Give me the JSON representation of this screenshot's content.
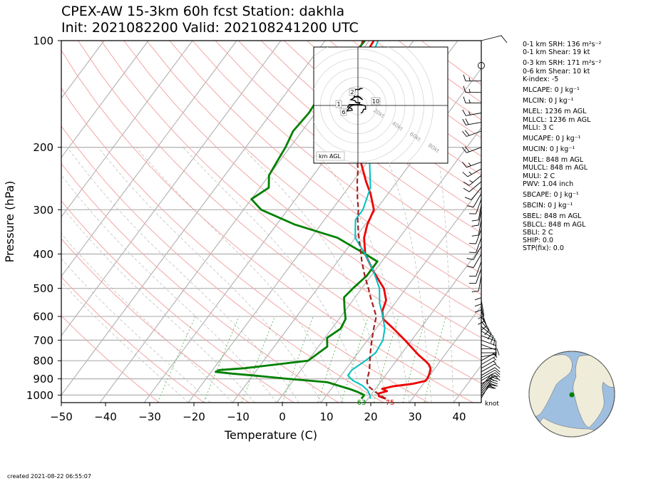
{
  "title_line1": "CPEX-AW 15-3km  60h fcst  Station: dakhla",
  "title_line2": "Init: 2021082200  Valid: 202108241200 UTC",
  "created": "created 2021-08-22 06:55:07",
  "indices": [
    "0-1 km SRH: 136 m²s⁻²",
    "0-1 km Shear: 19 kt",
    "",
    "0-3 km SRH: 171 m²s⁻²",
    "0-6 km Shear: 10 kt",
    "K-index: -5",
    "",
    "MLCAPE: 0 J kg⁻¹",
    "",
    "MLCIN: 0 J kg⁻¹",
    "",
    "MLEL: 1236 m AGL",
    "MLLCL: 1236 m AGL",
    "MLLI: 3 C",
    "",
    "MUCAPE: 0 J kg⁻¹",
    "",
    "MUCIN: 0 J kg⁻¹",
    "",
    "MUEL: 848 m AGL",
    "MULCL: 848 m AGL",
    "MULI: 2 C",
    "PWV: 1.04 inch",
    "",
    "SBCAPE: 0 J kg⁻¹",
    "",
    "SBCIN: 0 J kg⁻¹",
    "",
    "SBEL: 848 m AGL",
    "SBLCL: 848 m AGL",
    "SBLI: 2 C",
    "SHIP: 0.0",
    "STP(fix): 0.0"
  ],
  "colors": {
    "temperature": "#ee0000",
    "dewpoint": "#008000",
    "wetbulb": "#00c0c0",
    "parcel": "#a02020",
    "dry_adiabat": "#f4a6a6",
    "moist_adiabat": "#c0c0c0",
    "mixing_ratio": "#5cb85c",
    "isotherm": "#b0b0b0",
    "ocean": "#9fbfe0",
    "land": "#efecd9"
  },
  "hodograph": {
    "rings": [
      "20kt",
      "40kt",
      "60kt",
      "80kt"
    ],
    "markers": [
      "1",
      "2",
      "6",
      "10"
    ],
    "label": "km AGL",
    "path_u": [
      3,
      5,
      6,
      8,
      8,
      7,
      3,
      -4,
      -8,
      -12,
      -6,
      -7,
      -11,
      -9,
      -5,
      1,
      2,
      -2,
      -3,
      -6,
      -8,
      -6,
      -3,
      1,
      5,
      3,
      0,
      -4,
      -4,
      -3,
      -3,
      2,
      2,
      4,
      5
    ],
    "path_v": [
      -8,
      -7,
      -4,
      -4,
      -1,
      0,
      1,
      1,
      -1,
      -6,
      -5,
      -3,
      -2,
      1,
      1,
      1,
      3,
      3,
      5,
      6,
      6,
      7,
      9,
      9,
      6,
      8,
      10,
      9,
      12,
      16,
      17,
      17,
      18,
      18,
      18
    ]
  },
  "chart_data": {
    "type": "line",
    "title": "CPEX-AW 15-3km  60h fcst  Station: dakhla",
    "subtitle": "Init: 2021082200  Valid: 202108241200 UTC",
    "xlabel": "Temperature (C)",
    "ylabel": "Pressure (hPa)",
    "x_ticks": [
      -50,
      -40,
      -30,
      -20,
      -10,
      0,
      10,
      20,
      30,
      40
    ],
    "y_ticks": [
      100,
      200,
      300,
      400,
      500,
      600,
      700,
      800,
      900,
      1000
    ],
    "xlim": [
      -50,
      45
    ],
    "ylim": [
      1050,
      100
    ],
    "y_scale": "log",
    "surface_temperature_label": "75",
    "surface_dewpoint_label": "63",
    "wind_unit_label": "knot",
    "series": [
      {
        "name": "temperature",
        "pressure": [
          1024,
          1007,
          990,
          975,
          960,
          945,
          930,
          912,
          895,
          880,
          860,
          840,
          820,
          800,
          770,
          700,
          650,
          610,
          580,
          540,
          500,
          450,
          400,
          360,
          330,
          300,
          270,
          250,
          220,
          200,
          170,
          150,
          130,
          110,
          100
        ],
        "values": [
          24,
          22,
          21.5,
          23,
          21.5,
          23.5,
          27.5,
          30,
          30,
          29.8,
          29.5,
          29,
          28,
          26.5,
          24,
          18.5,
          14,
          10,
          8.5,
          7.5,
          5,
          0,
          -5,
          -8,
          -9.5,
          -10.5,
          -14,
          -17,
          -21.5,
          -25,
          -30.5,
          -35,
          -37.5,
          -38.5,
          -39
        ]
      },
      {
        "name": "dewpoint",
        "pressure": [
          1024,
          1000,
          980,
          960,
          940,
          920,
          900,
          880,
          870,
          860,
          850,
          840,
          800,
          730,
          690,
          650,
          610,
          570,
          530,
          500,
          460,
          420,
          400,
          360,
          330,
          300,
          280,
          260,
          240,
          220,
          200,
          180,
          160,
          140,
          120,
          100
        ],
        "values": [
          18.5,
          18.5,
          16.5,
          14,
          11,
          8,
          -1.5,
          -10,
          -15,
          -19,
          -18.5,
          -13,
          0,
          2,
          0.5,
          2,
          1.5,
          -0.5,
          -2.5,
          -2,
          -1,
          -1,
          -5,
          -14,
          -26,
          -36,
          -40,
          -38,
          -40,
          -40.5,
          -41,
          -42,
          -41.5,
          -42,
          -41.5,
          -41
        ]
      },
      {
        "name": "wet_bulb",
        "pressure": [
          1024,
          1000,
          970,
          940,
          910,
          880,
          850,
          800,
          760,
          700,
          650,
          600,
          550,
          500,
          450,
          400,
          360,
          320,
          300,
          260,
          220,
          200,
          170,
          140,
          120,
          100
        ],
        "values": [
          20.5,
          19.8,
          18.5,
          16.5,
          13.5,
          11.5,
          11.5,
          13,
          14,
          13.5,
          12,
          9.5,
          6.5,
          4,
          0,
          -5,
          -10,
          -13,
          -13,
          -15,
          -19.5,
          -23,
          -29,
          -34,
          -36,
          -38
        ]
      },
      {
        "name": "parcel_profile",
        "pressure": [
          1024,
          980,
          945,
          920,
          900,
          850,
          800,
          750,
          700,
          650,
          600,
          560,
          530,
          500,
          460,
          420,
          380,
          350,
          320,
          300,
          280,
          250,
          230,
          200,
          175,
          150,
          130,
          115,
          100
        ],
        "values": [
          24,
          20.5,
          18,
          17,
          16.5,
          15.5,
          14,
          12.5,
          11,
          9.5,
          8,
          5.5,
          3.5,
          1.5,
          -1.5,
          -4.5,
          -7.5,
          -10,
          -12.5,
          -14,
          -16,
          -19,
          -21,
          -25,
          -28.5,
          -32.5,
          -36,
          -39.5,
          -41.5
        ]
      }
    ],
    "wind_barbs": {
      "unit": "knot",
      "pressure": [
        1020,
        1005,
        990,
        975,
        960,
        945,
        930,
        910,
        895,
        880,
        860,
        840,
        820,
        800,
        780,
        760,
        740,
        720,
        700,
        680,
        660,
        640,
        620,
        600,
        580,
        560,
        540,
        520,
        500,
        480,
        460,
        440,
        420,
        400,
        380,
        360,
        340,
        320,
        300,
        290,
        280,
        270,
        260,
        250,
        240,
        230,
        220,
        200,
        180,
        170,
        160,
        150,
        140,
        130
      ],
      "speed": [
        20,
        20,
        15,
        15,
        15,
        15,
        15,
        15,
        10,
        10,
        10,
        5,
        5,
        5,
        5,
        5,
        10,
        10,
        10,
        10,
        10,
        10,
        10,
        10,
        10,
        10,
        10,
        10,
        10,
        10,
        10,
        10,
        10,
        10,
        10,
        10,
        10,
        10,
        10,
        10,
        10,
        10,
        10,
        10,
        15,
        15,
        15,
        20,
        20,
        20,
        15,
        15,
        15,
        15
      ],
      "direction": [
        30,
        40,
        40,
        40,
        40,
        40,
        60,
        60,
        60,
        60,
        60,
        60,
        60,
        60,
        80,
        90,
        90,
        110,
        110,
        110,
        120,
        130,
        140,
        150,
        160,
        170,
        170,
        180,
        180,
        180,
        190,
        200,
        200,
        210,
        210,
        200,
        200,
        190,
        190,
        190,
        200,
        210,
        220,
        230,
        230,
        240,
        250,
        250,
        250,
        260,
        260,
        270,
        270,
        270
      ]
    }
  }
}
